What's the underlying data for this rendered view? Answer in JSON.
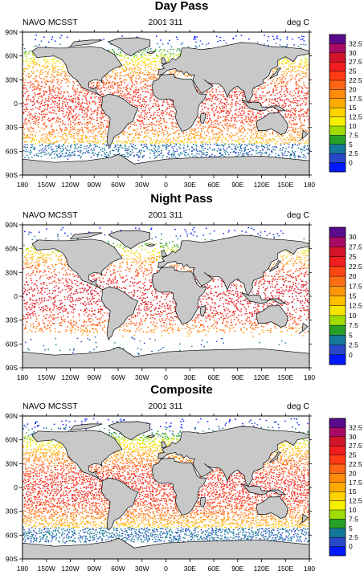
{
  "chart_data": [
    {
      "type": "heatmap",
      "title": "Day Pass",
      "left_label": "NAVO MCSST",
      "center_label": "2001 311",
      "right_label": "deg C",
      "x_ticks": [
        "180",
        "150W",
        "120W",
        "90W",
        "60W",
        "30W",
        "0",
        "30E",
        "60E",
        "90E",
        "120E",
        "150E",
        "180"
      ],
      "y_ticks": [
        "90N",
        "60N",
        "30N",
        "0",
        "30S",
        "60S",
        "90S"
      ],
      "colorbar_labels": [
        "32.5",
        "30",
        "27.5",
        "25",
        "22.5",
        "20",
        "17.5",
        "15",
        "12.5",
        "10",
        "7.5",
        "5",
        "2.5",
        "0"
      ],
      "colorbar_colors": [
        "#5a0a8c",
        "#aa0a64",
        "#d21428",
        "#f01e1e",
        "#ff3c14",
        "#ff6414",
        "#ff8c0a",
        "#ffaa00",
        "#ffd200",
        "#f5f000",
        "#a0dc00",
        "#28a028",
        "#14789a",
        "#2848c8",
        "#0018ff"
      ],
      "coverage": "day"
    },
    {
      "type": "heatmap",
      "title": "Night Pass",
      "left_label": "NAVO MCSST",
      "center_label": "2001 311",
      "right_label": "deg C",
      "x_ticks": [
        "180",
        "150W",
        "120W",
        "90W",
        "60W",
        "30W",
        "0",
        "30E",
        "60E",
        "90E",
        "120E",
        "150E",
        "180"
      ],
      "y_ticks": [
        "90N",
        "60N",
        "30N",
        "0",
        "30S",
        "60S",
        "90S"
      ],
      "colorbar_labels": [
        "30",
        "27.5",
        "25",
        "22.5",
        "20",
        "17.5",
        "15",
        "12.5",
        "10",
        "7.5",
        "5",
        "2.5",
        "0"
      ],
      "colorbar_colors": [
        "#5a0a8c",
        "#aa0a64",
        "#d21428",
        "#f01e1e",
        "#ff4614",
        "#ff6e14",
        "#ff960a",
        "#ffbe00",
        "#f5e600",
        "#a0dc00",
        "#28a028",
        "#14789a",
        "#2848c8",
        "#0018ff"
      ],
      "coverage": "night"
    },
    {
      "type": "heatmap",
      "title": "Composite",
      "left_label": "NAVO MCSST",
      "center_label": "2001 311",
      "right_label": "deg C",
      "x_ticks": [
        "180",
        "150W",
        "120W",
        "90W",
        "60W",
        "30W",
        "0",
        "30E",
        "60E",
        "90E",
        "120E",
        "150E",
        "180"
      ],
      "y_ticks": [
        "90N",
        "60N",
        "30N",
        "0",
        "30S",
        "60S",
        "90S"
      ],
      "colorbar_labels": [
        "32.5",
        "30",
        "27.5",
        "25",
        "22.5",
        "20",
        "17.5",
        "15",
        "12.5",
        "10",
        "7.5",
        "5",
        "2.5",
        "0"
      ],
      "colorbar_colors": [
        "#5a0a8c",
        "#aa0a64",
        "#d21428",
        "#f01e1e",
        "#ff3c14",
        "#ff6414",
        "#ff8c0a",
        "#ffaa00",
        "#ffd200",
        "#f5f000",
        "#a0dc00",
        "#28a028",
        "#14789a",
        "#2848c8",
        "#0018ff"
      ],
      "coverage": "composite"
    }
  ],
  "land_color": "#c8c8c8",
  "coast_color": "#000000"
}
